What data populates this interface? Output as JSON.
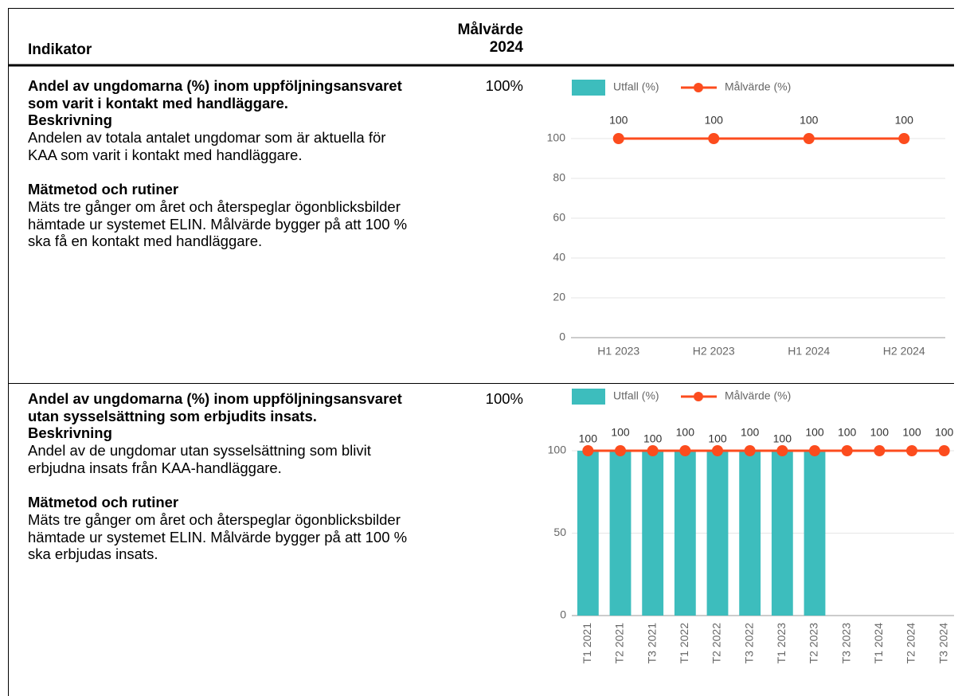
{
  "table": {
    "header": [
      "Indikator",
      "Målvärde 2024"
    ],
    "rows": [
      {
        "title": "Andel av ungdomarna (%) inom uppföljningsansvaret som varit i kontakt med handläggare.",
        "description_heading": "Beskrivning",
        "description": "Andelen av totala antalet ungdomar som är aktuella för KAA som varit i kontakt med handläggare.",
        "method_heading": "Mätmetod och rutiner",
        "method": "Mäts tre gånger om året och återspeglar ögonblicksbilder hämtade ur systemet ELIN. Målvärde bygger på att 100 % ska få en kontakt med handläggare.",
        "target": "100%",
        "chart": {
          "type": "bar_line",
          "categories": [
            "H1 2023",
            "H2 2023",
            "H1 2024",
            "H2 2024"
          ],
          "series": [
            {
              "name": "Utfall (%)",
              "color": "#3dbdbd",
              "values": [
                null,
                null,
                null,
                null
              ]
            },
            {
              "name": "Målvärde (%)",
              "color": "#fc4c1e",
              "values": [
                100,
                100,
                100,
                100
              ]
            }
          ],
          "ylim": [
            0,
            100
          ],
          "yticks": [
            0,
            20,
            40,
            60,
            80,
            100
          ],
          "grid": true,
          "rotate_labels": false
        }
      },
      {
        "title": "Andel av ungdomarna (%) inom uppföljningsansvaret utan sysselsättning som erbjudits insats.",
        "description_heading": "Beskrivning",
        "description": "Andel av de ungdomar utan sysselsättning som blivit erbjudna insats från KAA-handläggare.",
        "method_heading": "Mätmetod och rutiner",
        "method": "Mäts tre gånger om året och återspeglar ögonblicksbilder hämtade ur systemet ELIN. Målvärde bygger på att 100 % ska erbjudas insats.",
        "target": "100%",
        "chart": {
          "type": "bar_line",
          "categories": [
            "T1 2021",
            "T2 2021",
            "T3 2021",
            "T1 2022",
            "T2 2022",
            "T3 2022",
            "T1 2023",
            "T2 2023",
            "T3 2023",
            "T1 2024",
            "T2 2024",
            "T3 2024"
          ],
          "series": [
            {
              "name": "Utfall (%)",
              "color": "#3dbdbd",
              "values": [
                100,
                100,
                100,
                100,
                100,
                100,
                100,
                100,
                null,
                null,
                null,
                null
              ]
            },
            {
              "name": "Målvärde (%)",
              "color": "#fc4c1e",
              "values": [
                100,
                100,
                100,
                100,
                100,
                100,
                100,
                100,
                100,
                100,
                100,
                100
              ]
            }
          ],
          "ylim": [
            0,
            100
          ],
          "yticks": [
            0,
            50,
            100
          ],
          "grid": true,
          "rotate_labels": true
        }
      }
    ]
  }
}
